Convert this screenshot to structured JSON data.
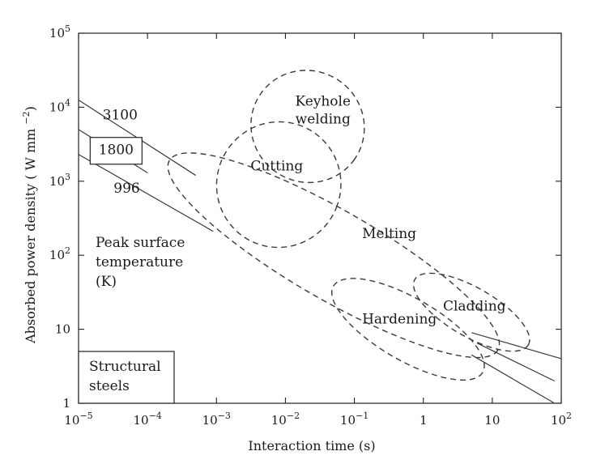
{
  "chart_data": {
    "type": "scatter",
    "xlabel": "Interaction time (s)",
    "ylabel": "Absorbed power density ( W mm",
    "ylabel_exp": "−2",
    "ylabel_close": ")",
    "xscale": "log",
    "yscale": "log",
    "xlim": [
      1e-05,
      100
    ],
    "ylim": [
      1,
      100000
    ],
    "x_ticks": [
      {
        "value": 1e-05,
        "base": "10",
        "exp": "−5"
      },
      {
        "value": 0.0001,
        "base": "10",
        "exp": "−4"
      },
      {
        "value": 0.001,
        "base": "10",
        "exp": "−3"
      },
      {
        "value": 0.01,
        "base": "10",
        "exp": "−2"
      },
      {
        "value": 0.1,
        "base": "10",
        "exp": "−1"
      },
      {
        "value": 1,
        "base": "1",
        "exp": ""
      },
      {
        "value": 10,
        "base": "10",
        "exp": ""
      },
      {
        "value": 100,
        "base": "10",
        "exp": "2"
      }
    ],
    "y_ticks": [
      {
        "value": 1,
        "base": "1",
        "exp": ""
      },
      {
        "value": 10,
        "base": "10",
        "exp": ""
      },
      {
        "value": 100,
        "base": "10",
        "exp": "2"
      },
      {
        "value": 1000,
        "base": "10",
        "exp": "3"
      },
      {
        "value": 10000,
        "base": "10",
        "exp": "4"
      },
      {
        "value": 100000,
        "base": "10",
        "exp": "5"
      }
    ],
    "regions": [
      {
        "name": "Keyhole welding",
        "lines": [
          "Keyhole",
          "welding"
        ],
        "center_x": 0.021,
        "center_y": 5500,
        "rx_decades": 0.83,
        "ry_decades": 0.75,
        "rotation_deg": 35
      },
      {
        "name": "Cutting",
        "lines": [
          "Cutting"
        ],
        "center_x": 0.008,
        "center_y": 900,
        "rx_decades": 0.9,
        "ry_decades": 0.85,
        "rotation_deg": 20
      },
      {
        "name": "Melting",
        "lines": [
          "Melting"
        ],
        "center_x": 0.05,
        "center_y": 100,
        "rx_decades": 2.75,
        "ry_decades": 0.6,
        "rotation_deg": 30
      },
      {
        "name": "Hardening",
        "lines": [
          "Hardening"
        ],
        "center_x": 0.6,
        "center_y": 10,
        "rx_decades": 1.25,
        "ry_decades": 0.42,
        "rotation_deg": 30
      },
      {
        "name": "Cladding",
        "lines": [
          "Cladding"
        ],
        "center_x": 5,
        "center_y": 17,
        "rx_decades": 0.95,
        "ry_decades": 0.33,
        "rotation_deg": 30
      }
    ],
    "isotherms": [
      {
        "label": "3100",
        "x": [
          1e-05,
          0.0005
        ],
        "y": [
          12500,
          1200
        ],
        "x2": [
          5,
          100
        ],
        "y2": [
          9,
          4
        ]
      },
      {
        "label": "1800",
        "x": [
          1e-05,
          0.0001
        ],
        "y": [
          5000,
          1300
        ],
        "x2": [
          6,
          80
        ],
        "y2": [
          6.5,
          2
        ]
      },
      {
        "label": "996",
        "x": [
          1e-05,
          0.0009
        ],
        "y": [
          2300,
          210
        ],
        "x2": [
          5,
          80
        ],
        "y2": [
          4.5,
          1
        ]
      }
    ],
    "annotations": {
      "peak_surface_temperature": [
        "Peak surface",
        "temperature",
        "(K)"
      ],
      "material": [
        "Structural",
        "steels"
      ]
    }
  }
}
